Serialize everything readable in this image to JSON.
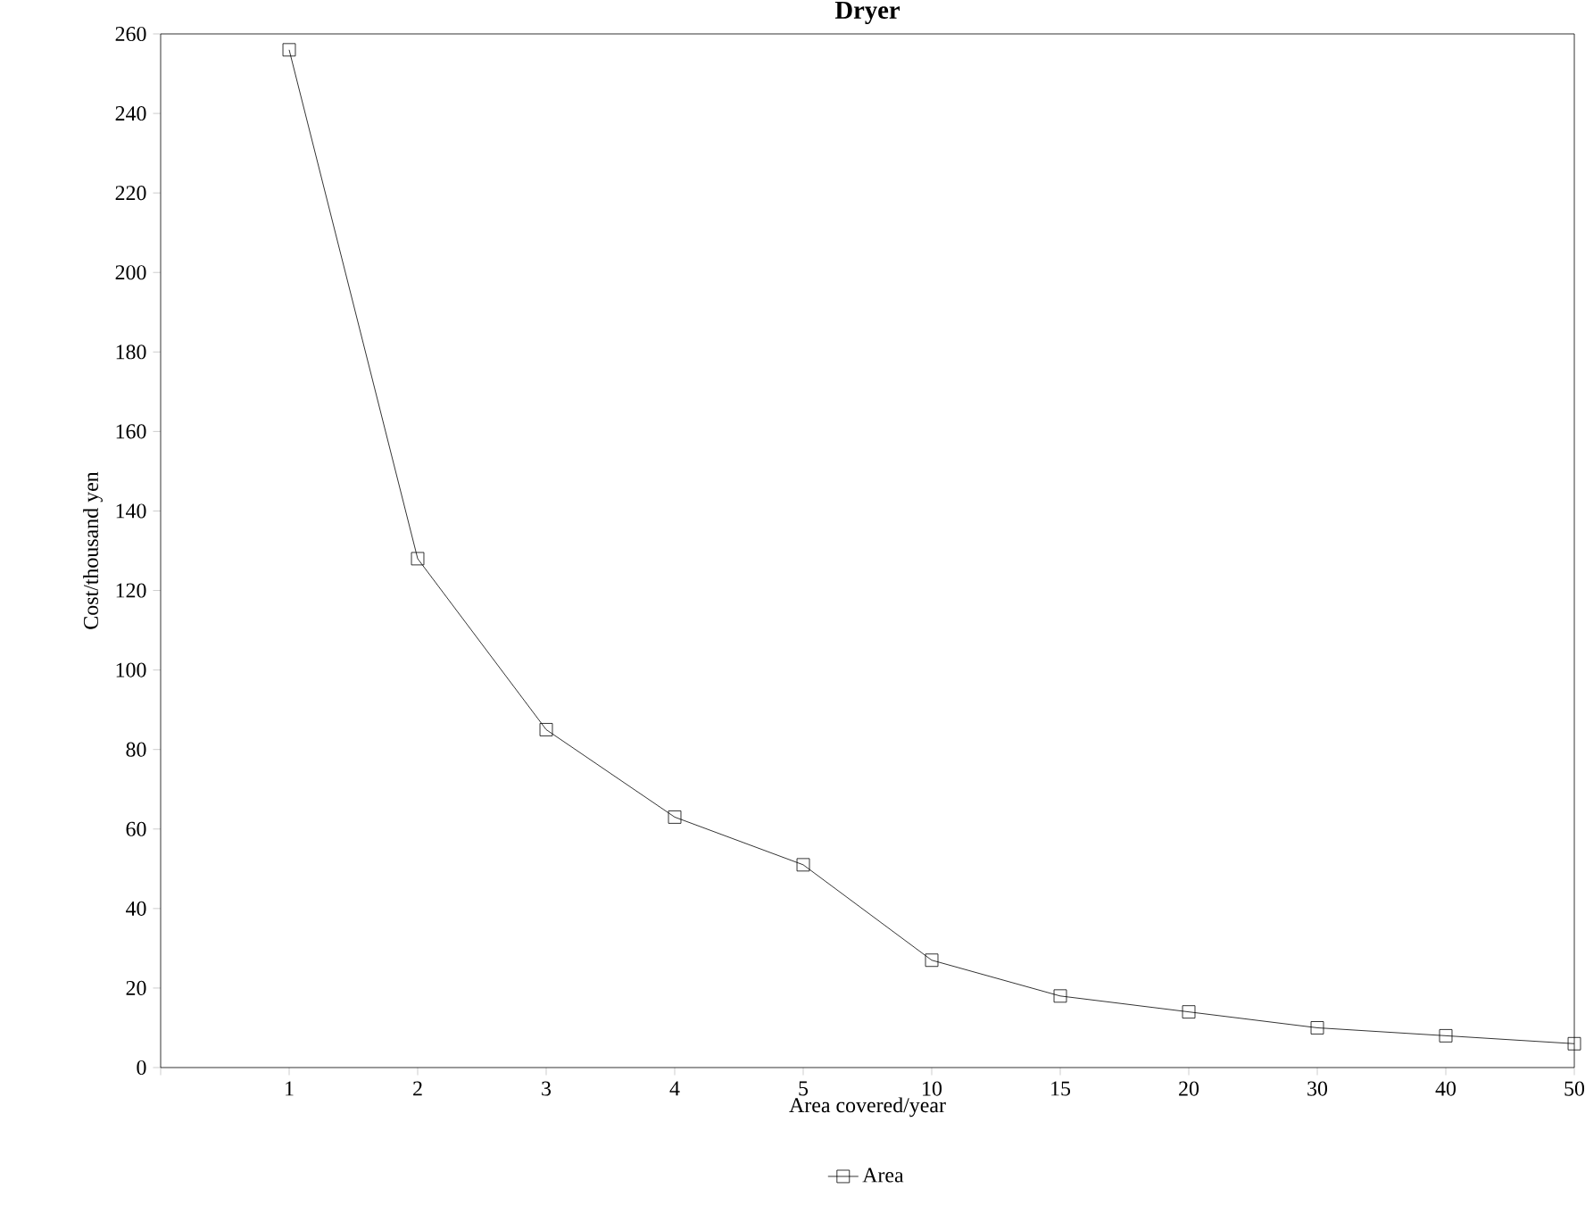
{
  "chart_data": {
    "type": "line",
    "title": "Dryer",
    "xlabel": "Area covered/year",
    "ylabel": "Cost/thousand yen",
    "categories": [
      "1",
      "2",
      "3",
      "4",
      "5",
      "10",
      "15",
      "20",
      "30",
      "40",
      "50"
    ],
    "series": [
      {
        "name": "Area",
        "color": "#000000",
        "values": [
          256,
          128,
          85,
          63,
          51,
          27,
          18,
          14,
          10,
          8,
          6
        ]
      }
    ],
    "ylim": [
      0,
      260
    ],
    "yticks": [
      0,
      20,
      40,
      60,
      80,
      100,
      120,
      140,
      160,
      180,
      200,
      220,
      240,
      260
    ],
    "grid": false,
    "legend": "bottom",
    "marker": "square",
    "line_style": "solid"
  }
}
